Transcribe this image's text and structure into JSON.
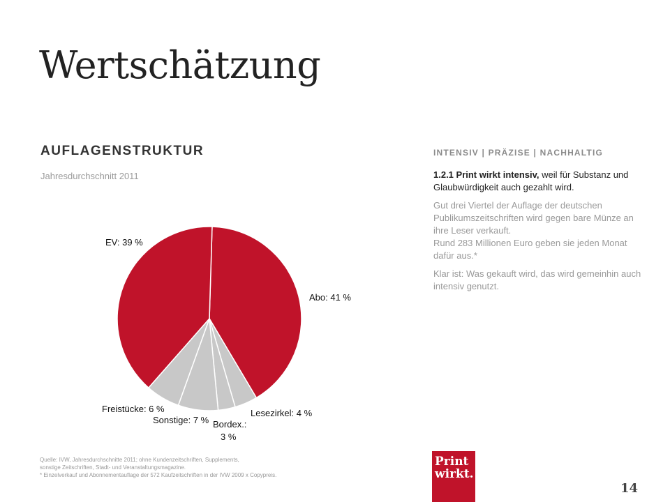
{
  "page": {
    "title": "Wertschätzung",
    "page_number": "14"
  },
  "section": {
    "heading": "AUFLAGENSTRUKTUR",
    "subtitle": "Jahresdurchschnitt 2011"
  },
  "right_column": {
    "heading": "INTENSIV | PRÄZISE | NACHHALTIG",
    "lead_bold": "1.2.1 Print wirkt intensiv,",
    "lead_rest": " weil für Substanz und Glaubwürdigkeit auch gezahlt wird.",
    "paragraph1_line1": "Gut drei Viertel der Auflage der deutschen Publikumszeitschriften wird gegen bare Münze an ihre Leser verkauft.",
    "paragraph1_line2": "Rund 283 Millionen Euro geben sie jeden Monat dafür aus.*",
    "paragraph2": "Klar ist: Was gekauft wird, das wird gemeinhin auch intensiv genutzt."
  },
  "footnote": {
    "line1": "Quelle: IVW, Jahresdurchschnitte 2011; ohne Kundenzeitschriften, Supplements,",
    "line2": "sonstige Zeitschriften, Stadt- und Veranstaltungsmagazine.",
    "line3": "* Einzelverkauf und Abonnementauflage der 572 Kaufzeitschriften in der IVW 2009 x Copypreis."
  },
  "logo": {
    "line1": "Print",
    "line2": "wirkt."
  },
  "colors": {
    "primary": "#c0132a",
    "secondary": "#c8c8c8"
  },
  "chart_data": {
    "type": "pie",
    "slices": [
      {
        "label": "Abo: 41 %",
        "value": 41,
        "color": "#c0132a"
      },
      {
        "label": "Lesezirkel: 4 %",
        "value": 4,
        "color": "#c8c8c8"
      },
      {
        "label": "Bordex.: 3 %",
        "label_line1": "Bordex.:",
        "label_line2": "3 %",
        "value": 3,
        "color": "#c8c8c8"
      },
      {
        "label": "Sonstige: 7 %",
        "value": 7,
        "color": "#c8c8c8"
      },
      {
        "label": "Freistücke: 6 %",
        "value": 6,
        "color": "#c8c8c8"
      },
      {
        "label": "EV: 39 %",
        "value": 39,
        "color": "#c0132a"
      }
    ]
  }
}
